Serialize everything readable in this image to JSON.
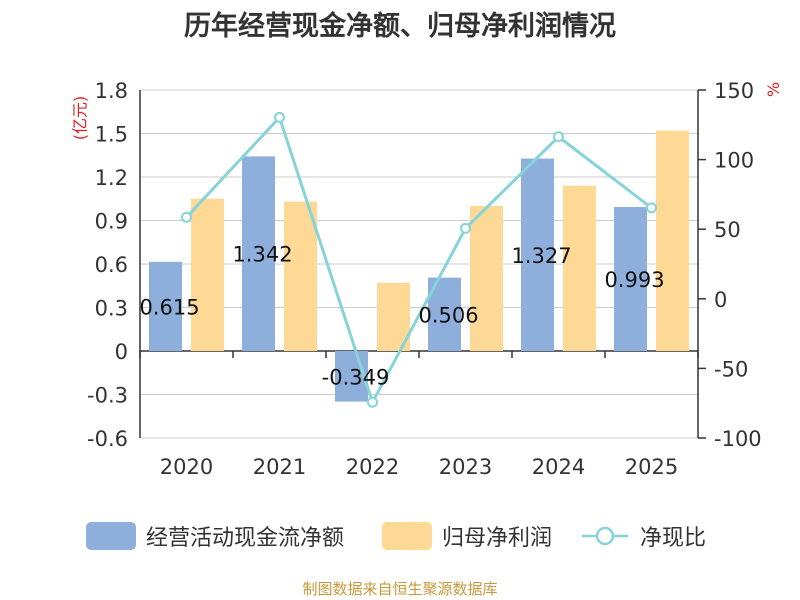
{
  "chart_data": {
    "type": "bar",
    "title": "历年经营现金净额、归母净利润情况",
    "categories": [
      "2020",
      "2021",
      "2022",
      "2023",
      "2024",
      "2025"
    ],
    "series": [
      {
        "name": "经营活动现金流净额",
        "type": "bar",
        "axis": "left",
        "color": "#8eaedc",
        "values": [
          0.615,
          1.342,
          -0.349,
          0.506,
          1.327,
          0.993
        ],
        "labels": [
          "0.615",
          "1.342",
          "-0.349",
          "0.506",
          "1.327",
          "0.993"
        ]
      },
      {
        "name": "归母净利润",
        "type": "bar",
        "axis": "left",
        "color": "#fed895",
        "values": [
          1.05,
          1.03,
          0.47,
          1.0,
          1.14,
          1.52
        ]
      },
      {
        "name": "净现比",
        "type": "line",
        "axis": "right",
        "color": "#86d3d9",
        "values": [
          58.6,
          130.3,
          -74.3,
          50.6,
          116.4,
          65.3
        ]
      }
    ],
    "left_axis": {
      "unit": "(亿元)",
      "ylim": [
        -0.6,
        1.8
      ],
      "ticks": [
        "-0.6",
        "-0.3",
        "0",
        "0.3",
        "0.6",
        "0.9",
        "1.2",
        "1.5",
        "1.8"
      ]
    },
    "right_axis": {
      "unit": "%",
      "ylim": [
        -100,
        150
      ],
      "ticks": [
        "-100",
        "-50",
        "0",
        "50",
        "100",
        "150"
      ]
    },
    "grid": true,
    "legend_position": "bottom"
  },
  "source": "制图数据来自恒生聚源数据库"
}
